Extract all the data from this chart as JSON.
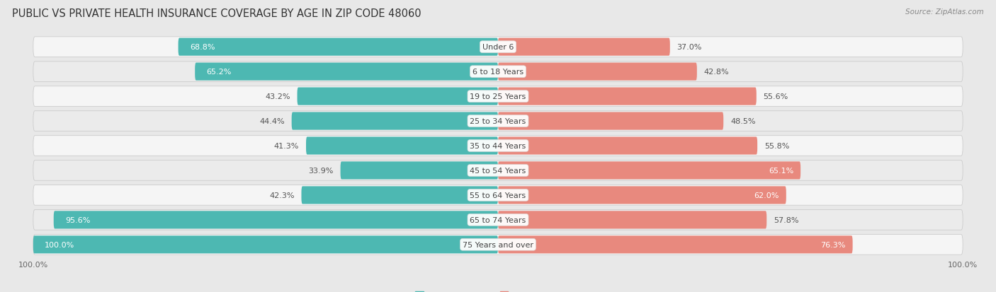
{
  "title": "PUBLIC VS PRIVATE HEALTH INSURANCE COVERAGE BY AGE IN ZIP CODE 48060",
  "source": "Source: ZipAtlas.com",
  "categories": [
    "Under 6",
    "6 to 18 Years",
    "19 to 25 Years",
    "25 to 34 Years",
    "35 to 44 Years",
    "45 to 54 Years",
    "55 to 64 Years",
    "65 to 74 Years",
    "75 Years and over"
  ],
  "public_values": [
    68.8,
    65.2,
    43.2,
    44.4,
    41.3,
    33.9,
    42.3,
    95.6,
    100.0
  ],
  "private_values": [
    37.0,
    42.8,
    55.6,
    48.5,
    55.8,
    65.1,
    62.0,
    57.8,
    76.3
  ],
  "public_color": "#4db8b2",
  "private_color": "#e8897e",
  "bg_color": "#e8e8e8",
  "row_colors": [
    "#f5f5f5",
    "#ebebeb"
  ],
  "bar_height": 0.72,
  "title_fontsize": 10.5,
  "source_fontsize": 7.5,
  "value_fontsize": 8,
  "cat_fontsize": 8,
  "axis_fontsize": 8,
  "legend_fontsize": 8,
  "pub_white_threshold": 55,
  "priv_white_threshold": 60
}
